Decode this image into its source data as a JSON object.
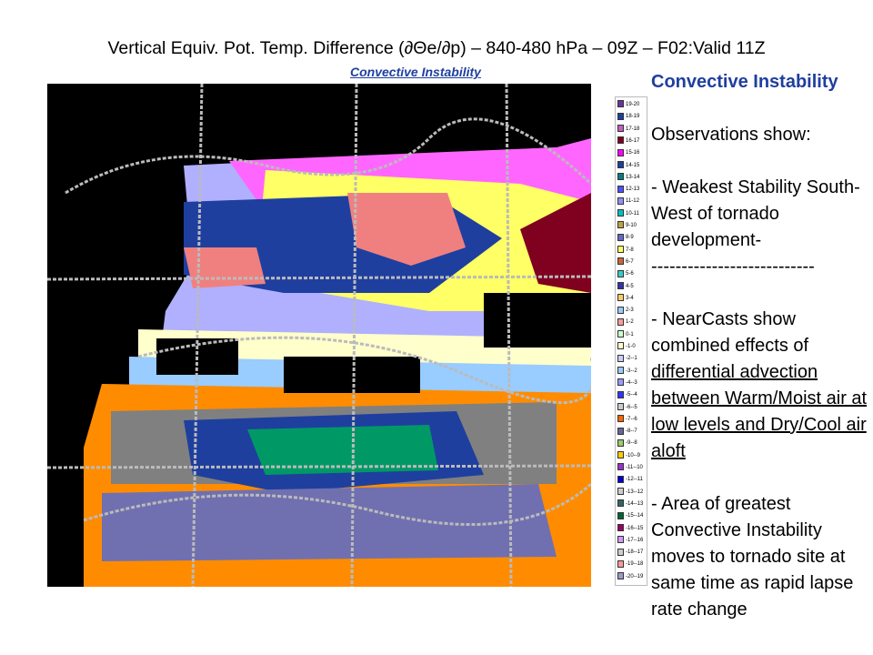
{
  "header": {
    "title": "Vertical Equiv. Pot. Temp. Difference (∂Θe/∂p) – 840-480 hPa – 09Z – F02:Valid 11Z",
    "subtitle": "Convective Instability"
  },
  "legend": {
    "items": [
      {
        "label": "19-20",
        "color": "#7030a0"
      },
      {
        "label": "18-19",
        "color": "#1f3fa0"
      },
      {
        "label": "17-18",
        "color": "#c060c0"
      },
      {
        "label": "16-17",
        "color": "#800020"
      },
      {
        "label": "15-16",
        "color": "#ff00ff"
      },
      {
        "label": "14-15",
        "color": "#1f3f9f"
      },
      {
        "label": "13-14",
        "color": "#008080"
      },
      {
        "label": "12-13",
        "color": "#5050ff"
      },
      {
        "label": "11-12",
        "color": "#9090ff"
      },
      {
        "label": "10-11",
        "color": "#00c0c0"
      },
      {
        "label": "9-10",
        "color": "#c0a040"
      },
      {
        "label": "8-9",
        "color": "#6666cc"
      },
      {
        "label": "7-8",
        "color": "#ffff66"
      },
      {
        "label": "6-7",
        "color": "#cc6633"
      },
      {
        "label": "5-6",
        "color": "#33cccc"
      },
      {
        "label": "4-5",
        "color": "#3333aa"
      },
      {
        "label": "3-4",
        "color": "#ffcc66"
      },
      {
        "label": "2-3",
        "color": "#99ccff"
      },
      {
        "label": "1-2",
        "color": "#ff9999"
      },
      {
        "label": "0-1",
        "color": "#ccffcc"
      },
      {
        "label": "-1-0",
        "color": "#ffffcc"
      },
      {
        "label": "-2--1",
        "color": "#ccccff"
      },
      {
        "label": "-3--2",
        "color": "#99ccff"
      },
      {
        "label": "-4--3",
        "color": "#9999ff"
      },
      {
        "label": "-5--4",
        "color": "#3333ff"
      },
      {
        "label": "-6--5",
        "color": "#cccccc"
      },
      {
        "label": "-7--6",
        "color": "#ff6600"
      },
      {
        "label": "-8--7",
        "color": "#666699"
      },
      {
        "label": "-9--8",
        "color": "#99cc66"
      },
      {
        "label": "-10--9",
        "color": "#ffcc00"
      },
      {
        "label": "-11--10",
        "color": "#9933cc"
      },
      {
        "label": "-12--11",
        "color": "#0000cc"
      },
      {
        "label": "-13--12",
        "color": "#cccccc"
      },
      {
        "label": "-14--13",
        "color": "#336666"
      },
      {
        "label": "-15--14",
        "color": "#006633"
      },
      {
        "label": "-16--15",
        "color": "#990066"
      },
      {
        "label": "-17--16",
        "color": "#cc99ff"
      },
      {
        "label": "-18--17",
        "color": "#cccccc"
      },
      {
        "label": "-19--18",
        "color": "#ff9999"
      },
      {
        "label": "-20--19",
        "color": "#9999cc"
      }
    ]
  },
  "notes": {
    "heading": "Convective Instability",
    "intro": "Observations show:",
    "point1": "- Weakest Stability South-West of tornado development-",
    "divider": "---------------------------",
    "point2_lead": "- NearCasts show combined effects of",
    "point2_underlined": "differential advection between Warm/Moist air at low levels and Dry/Cool air aloft",
    "point3": "- Area of greatest Convective Instability moves to tornado site at same time as rapid lapse rate change"
  }
}
